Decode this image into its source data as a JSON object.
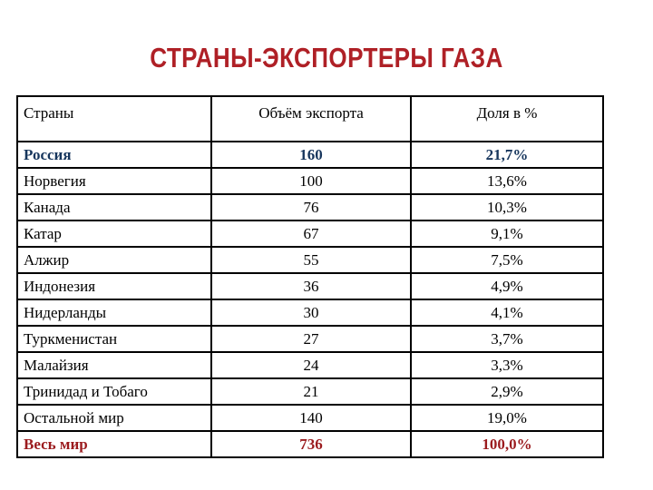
{
  "slide": {
    "title": "СТРАНЫ-ЭКСПОРТЕРЫ ГАЗА"
  },
  "table": {
    "columns": [
      "Страны",
      "Объём экспорта",
      "Доля в %"
    ],
    "rows": [
      {
        "country": "Россия",
        "volume": "160",
        "share": "21,7%",
        "emphasis": "navy"
      },
      {
        "country": "Норвегия",
        "volume": "100",
        "share": "13,6%",
        "emphasis": ""
      },
      {
        "country": "Канада",
        "volume": "76",
        "share": "10,3%",
        "emphasis": ""
      },
      {
        "country": "Катар",
        "volume": "67",
        "share": "9,1%",
        "emphasis": ""
      },
      {
        "country": "Алжир",
        "volume": "55",
        "share": "7,5%",
        "emphasis": ""
      },
      {
        "country": "Индонезия",
        "volume": "36",
        "share": "4,9%",
        "emphasis": ""
      },
      {
        "country": "Нидерланды",
        "volume": "30",
        "share": "4,1%",
        "emphasis": ""
      },
      {
        "country": "Туркменистан",
        "volume": "27",
        "share": "3,7%",
        "emphasis": ""
      },
      {
        "country": "Малайзия",
        "volume": "24",
        "share": "3,3%",
        "emphasis": ""
      },
      {
        "country": "Тринидад и Тобаго",
        "volume": "21",
        "share": "2,9%",
        "emphasis": ""
      },
      {
        "country": "Остальной мир",
        "volume": "140",
        "share": "19,0%",
        "emphasis": ""
      },
      {
        "country": "Весь мир",
        "volume": "736",
        "share": "100,0%",
        "emphasis": "red"
      }
    ]
  },
  "colors": {
    "title_red": "#AF2026",
    "row_navy": "#17365D",
    "row_red": "#9B1B1E",
    "table_border": "#000000",
    "background": "#FFFFFF"
  }
}
